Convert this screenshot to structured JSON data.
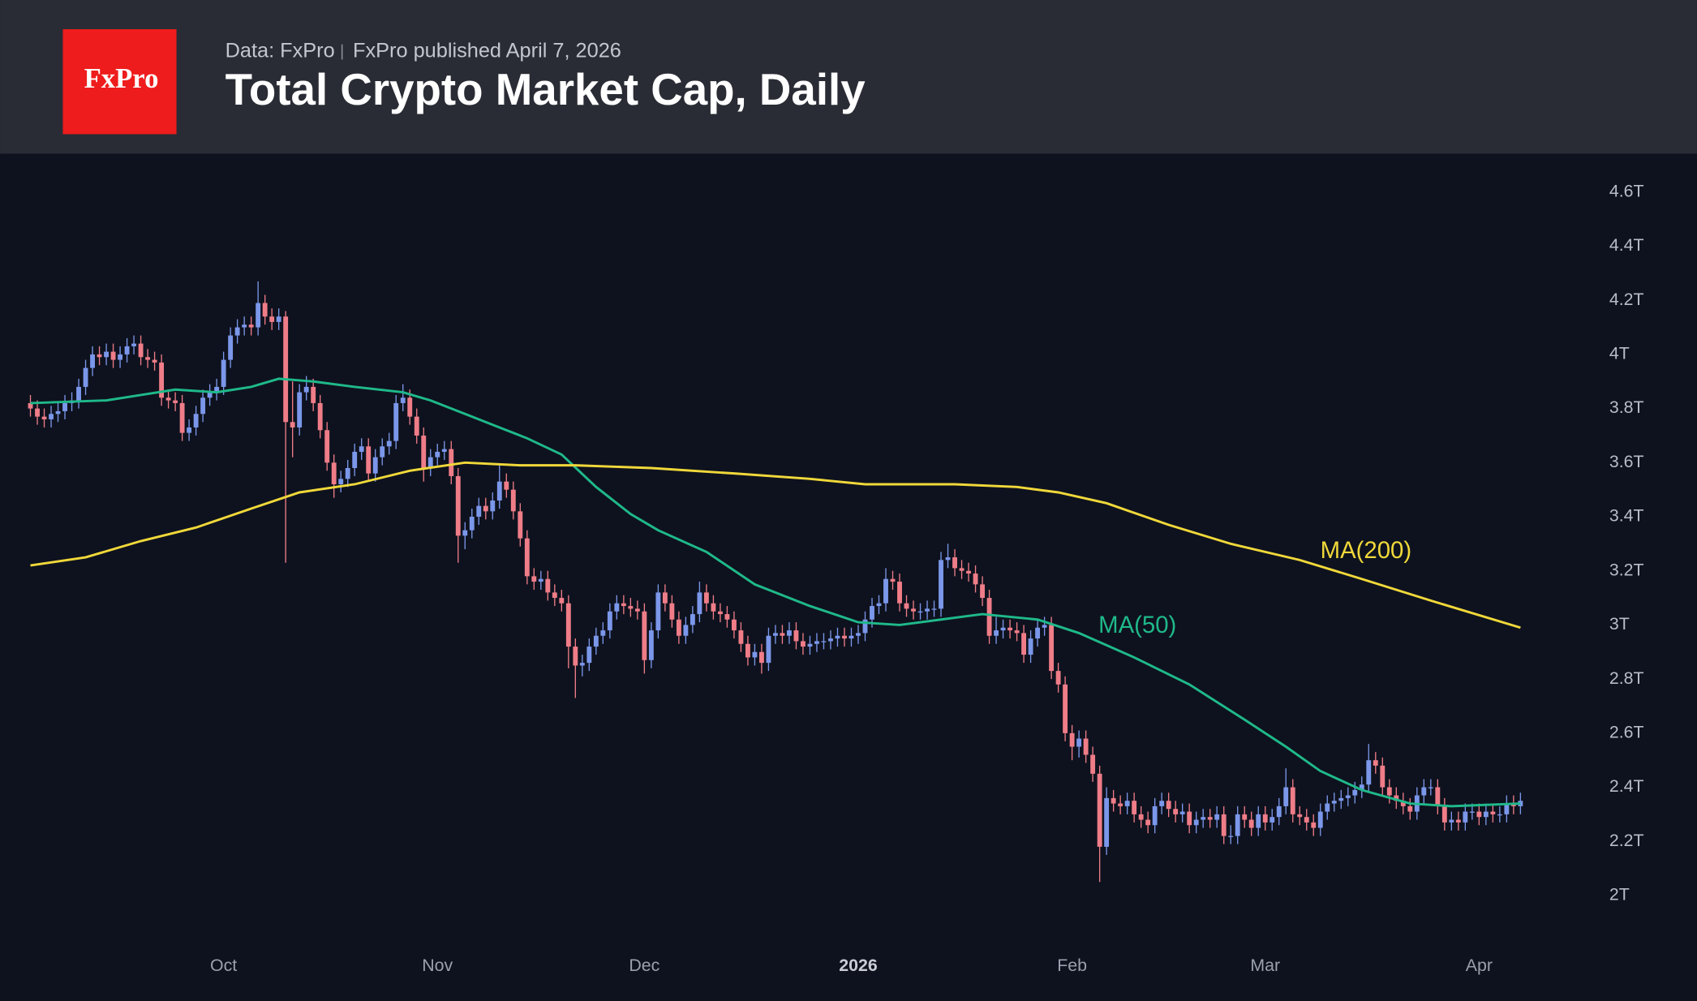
{
  "header": {
    "logo": "FxPro",
    "source": "Data: FxPro",
    "published": "FxPro published April 7, 2026"
  },
  "chart_data": {
    "type": "candlestick",
    "title": "Total Crypto Market Cap, Daily",
    "up_color": "#7b97ea",
    "down_color": "#ef7d88",
    "grid": false,
    "xlim": [
      -4.4,
      221.5
    ],
    "ylim": [
      1.83,
      4.73
    ],
    "xticks": [
      {
        "value": 28,
        "label": "Oct"
      },
      {
        "value": 59,
        "label": "Nov"
      },
      {
        "value": 89,
        "label": "Dec"
      },
      {
        "value": 120,
        "label": "2026",
        "bold": true
      },
      {
        "value": 151,
        "label": "Feb"
      },
      {
        "value": 179,
        "label": "Mar"
      },
      {
        "value": 210,
        "label": "Apr"
      }
    ],
    "yticks": [
      {
        "value": 2,
        "label": "2T"
      },
      {
        "value": 2.2,
        "label": "2.2T"
      },
      {
        "value": 2.4,
        "label": "2.4T"
      },
      {
        "value": 2.6,
        "label": "2.6T"
      },
      {
        "value": 2.8,
        "label": "2.8T"
      },
      {
        "value": 3,
        "label": "3T"
      },
      {
        "value": 3.2,
        "label": "3.2T"
      },
      {
        "value": 3.4,
        "label": "3.4T"
      },
      {
        "value": 3.6,
        "label": "3.6T"
      },
      {
        "value": 3.8,
        "label": "3.8T"
      },
      {
        "value": 4,
        "label": "4T"
      },
      {
        "value": 4.2,
        "label": "4.2T"
      },
      {
        "value": 4.4,
        "label": "4.4T"
      },
      {
        "value": 4.6,
        "label": "4.6T"
      }
    ],
    "x": [
      0,
      1,
      2,
      3,
      4,
      5,
      6,
      7,
      8,
      9,
      10,
      11,
      12,
      13,
      14,
      15,
      16,
      17,
      18,
      19,
      20,
      21,
      22,
      23,
      24,
      25,
      26,
      27,
      28,
      29,
      30,
      31,
      32,
      33,
      34,
      35,
      36,
      37,
      38,
      39,
      40,
      41,
      42,
      43,
      44,
      45,
      46,
      47,
      48,
      49,
      50,
      51,
      52,
      53,
      54,
      55,
      56,
      57,
      58,
      59,
      60,
      61,
      62,
      63,
      64,
      65,
      66,
      67,
      68,
      69,
      70,
      71,
      72,
      73,
      74,
      75,
      76,
      77,
      78,
      79,
      80,
      81,
      82,
      83,
      84,
      85,
      86,
      87,
      88,
      89,
      90,
      91,
      92,
      93,
      94,
      95,
      96,
      97,
      98,
      99,
      100,
      101,
      102,
      103,
      104,
      105,
      106,
      107,
      108,
      109,
      110,
      111,
      112,
      113,
      114,
      115,
      116,
      117,
      118,
      119,
      120,
      121,
      122,
      123,
      124,
      125,
      126,
      127,
      128,
      129,
      130,
      131,
      132,
      133,
      134,
      135,
      136,
      137,
      138,
      139,
      140,
      141,
      142,
      143,
      144,
      145,
      146,
      147,
      148,
      149,
      150,
      151,
      152,
      153,
      154,
      155,
      156,
      157,
      158,
      159,
      160,
      161,
      162,
      163,
      164,
      165,
      166,
      167,
      168,
      169,
      170,
      171,
      172,
      173,
      174,
      175,
      176,
      177,
      178,
      179,
      180,
      181,
      182,
      183,
      184,
      185,
      186,
      187,
      188,
      189,
      190,
      191,
      192,
      193,
      194,
      195,
      196,
      197,
      198,
      199,
      200,
      201,
      202,
      203,
      204,
      205,
      206,
      207,
      208,
      209,
      210,
      211,
      212,
      213,
      214,
      215,
      216
    ],
    "open": [
      3.82,
      3.8,
      3.77,
      3.76,
      3.78,
      3.79,
      3.82,
      3.83,
      3.88,
      3.95,
      4.0,
      3.99,
      4.01,
      3.98,
      4.0,
      4.03,
      4.04,
      3.99,
      3.98,
      3.97,
      3.84,
      3.83,
      3.82,
      3.71,
      3.73,
      3.78,
      3.84,
      3.86,
      3.88,
      3.98,
      4.07,
      4.1,
      4.11,
      4.1,
      4.19,
      4.14,
      4.12,
      4.14,
      3.75,
      3.73,
      3.86,
      3.88,
      3.82,
      3.72,
      3.6,
      3.52,
      3.54,
      3.58,
      3.64,
      3.66,
      3.56,
      3.62,
      3.66,
      3.68,
      3.82,
      3.84,
      3.77,
      3.7,
      3.58,
      3.62,
      3.64,
      3.65,
      3.55,
      3.33,
      3.35,
      3.4,
      3.44,
      3.42,
      3.46,
      3.53,
      3.5,
      3.42,
      3.32,
      3.18,
      3.16,
      3.17,
      3.12,
      3.1,
      3.08,
      2.92,
      2.85,
      2.86,
      2.92,
      2.96,
      2.98,
      3.05,
      3.08,
      3.07,
      3.06,
      3.05,
      2.87,
      2.98,
      3.12,
      3.08,
      3.02,
      2.96,
      3.0,
      3.04,
      3.12,
      3.08,
      3.05,
      3.04,
      3.02,
      2.98,
      2.93,
      2.88,
      2.9,
      2.86,
      2.96,
      2.97,
      2.96,
      2.98,
      2.94,
      2.92,
      2.93,
      2.94,
      2.94,
      2.95,
      2.96,
      2.95,
      2.96,
      2.97,
      3.02,
      3.07,
      3.08,
      3.17,
      3.16,
      3.08,
      3.06,
      3.05,
      3.05,
      3.06,
      3.06,
      3.24,
      3.25,
      3.21,
      3.2,
      3.19,
      3.15,
      3.1,
      2.96,
      2.98,
      2.99,
      2.98,
      2.97,
      2.89,
      2.95,
      2.99,
      3.0,
      2.83,
      2.78,
      2.6,
      2.55,
      2.58,
      2.52,
      2.45,
      2.18,
      2.36,
      2.34,
      2.33,
      2.35,
      2.3,
      2.28,
      2.26,
      2.33,
      2.35,
      2.32,
      2.3,
      2.31,
      2.26,
      2.28,
      2.29,
      2.28,
      2.3,
      2.22,
      2.22,
      2.3,
      2.28,
      2.25,
      2.3,
      2.27,
      2.29,
      2.33,
      2.4,
      2.3,
      2.29,
      2.27,
      2.25,
      2.31,
      2.34,
      2.35,
      2.36,
      2.37,
      2.39,
      2.41,
      2.5,
      2.48,
      2.4,
      2.37,
      2.35,
      2.33,
      2.31,
      2.37,
      2.4,
      2.4,
      2.33,
      2.27,
      2.28,
      2.27,
      2.31,
      2.31,
      2.29,
      2.31,
      2.3,
      2.3,
      2.34,
      2.33
    ],
    "high": [
      3.85,
      3.83,
      3.8,
      3.81,
      3.82,
      3.85,
      3.86,
      3.91,
      3.98,
      4.03,
      4.03,
      4.04,
      4.04,
      4.03,
      4.06,
      4.07,
      4.07,
      4.02,
      4.01,
      4.0,
      3.87,
      3.86,
      3.85,
      3.76,
      3.81,
      3.87,
      3.89,
      3.91,
      4.01,
      4.1,
      4.13,
      4.14,
      4.14,
      4.27,
      4.22,
      4.17,
      4.17,
      4.16,
      3.9,
      3.89,
      3.92,
      3.91,
      3.85,
      3.75,
      3.63,
      3.57,
      3.61,
      3.67,
      3.69,
      3.69,
      3.65,
      3.69,
      3.71,
      3.85,
      3.89,
      3.87,
      3.8,
      3.73,
      3.65,
      3.67,
      3.68,
      3.68,
      3.58,
      3.38,
      3.43,
      3.47,
      3.47,
      3.49,
      3.59,
      3.56,
      3.53,
      3.45,
      3.35,
      3.21,
      3.2,
      3.2,
      3.15,
      3.13,
      3.11,
      2.95,
      2.89,
      2.95,
      2.99,
      3.01,
      3.08,
      3.11,
      3.11,
      3.1,
      3.09,
      3.08,
      3.01,
      3.15,
      3.15,
      3.11,
      3.05,
      3.03,
      3.07,
      3.16,
      3.15,
      3.11,
      3.08,
      3.07,
      3.05,
      3.01,
      2.96,
      2.93,
      2.93,
      2.99,
      3.0,
      3.0,
      3.01,
      3.01,
      2.97,
      2.96,
      2.97,
      2.97,
      2.98,
      2.99,
      2.99,
      2.99,
      3.0,
      3.05,
      3.1,
      3.11,
      3.21,
      3.2,
      3.19,
      3.11,
      3.09,
      3.08,
      3.09,
      3.09,
      3.27,
      3.3,
      3.28,
      3.24,
      3.23,
      3.22,
      3.18,
      3.13,
      3.03,
      3.02,
      3.02,
      3.01,
      3.0,
      2.98,
      3.02,
      3.03,
      3.03,
      2.86,
      2.81,
      2.63,
      2.61,
      2.61,
      2.55,
      2.48,
      2.4,
      2.39,
      2.37,
      2.38,
      2.38,
      2.33,
      2.31,
      2.36,
      2.38,
      2.38,
      2.35,
      2.34,
      2.34,
      2.31,
      2.32,
      2.32,
      2.33,
      2.33,
      2.26,
      2.33,
      2.33,
      2.31,
      2.33,
      2.33,
      2.32,
      2.36,
      2.47,
      2.43,
      2.33,
      2.32,
      2.3,
      2.34,
      2.37,
      2.38,
      2.39,
      2.4,
      2.42,
      2.44,
      2.56,
      2.53,
      2.51,
      2.43,
      2.4,
      2.38,
      2.36,
      2.4,
      2.43,
      2.43,
      2.43,
      2.36,
      2.31,
      2.31,
      2.34,
      2.34,
      2.34,
      2.34,
      2.34,
      2.33,
      2.37,
      2.37,
      2.38
    ],
    "low": [
      3.77,
      3.74,
      3.73,
      3.73,
      3.75,
      3.76,
      3.79,
      3.8,
      3.85,
      3.92,
      3.96,
      3.96,
      3.95,
      3.95,
      3.97,
      4.0,
      3.96,
      3.95,
      3.94,
      3.81,
      3.8,
      3.79,
      3.68,
      3.68,
      3.7,
      3.75,
      3.81,
      3.83,
      3.85,
      3.95,
      4.04,
      4.07,
      4.07,
      4.07,
      4.11,
      4.09,
      4.09,
      3.23,
      3.62,
      3.7,
      3.83,
      3.79,
      3.69,
      3.57,
      3.47,
      3.49,
      3.51,
      3.55,
      3.61,
      3.53,
      3.53,
      3.59,
      3.63,
      3.65,
      3.79,
      3.74,
      3.67,
      3.53,
      3.55,
      3.59,
      3.61,
      3.52,
      3.23,
      3.28,
      3.32,
      3.37,
      3.39,
      3.39,
      3.43,
      3.47,
      3.39,
      3.29,
      3.15,
      3.13,
      3.13,
      3.09,
      3.07,
      3.05,
      2.84,
      2.73,
      2.81,
      2.83,
      2.89,
      2.93,
      2.95,
      3.02,
      3.04,
      3.03,
      3.02,
      2.82,
      2.84,
      2.95,
      3.05,
      2.99,
      2.93,
      2.93,
      2.97,
      3.01,
      3.05,
      3.02,
      3.01,
      2.99,
      2.95,
      2.9,
      2.85,
      2.85,
      2.82,
      2.83,
      2.93,
      2.93,
      2.93,
      2.91,
      2.89,
      2.89,
      2.9,
      2.91,
      2.91,
      2.92,
      2.92,
      2.92,
      2.93,
      2.94,
      2.99,
      3.04,
      3.05,
      3.13,
      3.05,
      3.03,
      3.02,
      3.02,
      3.02,
      3.03,
      3.03,
      3.21,
      3.18,
      3.17,
      3.16,
      3.12,
      3.07,
      2.93,
      2.93,
      2.95,
      2.95,
      2.94,
      2.86,
      2.86,
      2.92,
      2.96,
      2.8,
      2.75,
      2.57,
      2.5,
      2.51,
      2.49,
      2.42,
      2.05,
      2.15,
      2.31,
      2.3,
      2.3,
      2.27,
      2.25,
      2.23,
      2.23,
      2.3,
      2.29,
      2.27,
      2.27,
      2.23,
      2.23,
      2.25,
      2.25,
      2.25,
      2.19,
      2.19,
      2.19,
      2.25,
      2.22,
      2.22,
      2.24,
      2.24,
      2.26,
      2.3,
      2.27,
      2.26,
      2.24,
      2.22,
      2.22,
      2.28,
      2.31,
      2.32,
      2.33,
      2.34,
      2.36,
      2.38,
      2.45,
      2.37,
      2.34,
      2.32,
      2.3,
      2.28,
      2.28,
      2.34,
      2.37,
      2.3,
      2.24,
      2.24,
      2.24,
      2.24,
      2.28,
      2.26,
      2.26,
      2.27,
      2.27,
      2.27,
      2.3,
      2.3
    ],
    "close": [
      3.8,
      3.77,
      3.76,
      3.78,
      3.79,
      3.82,
      3.83,
      3.88,
      3.95,
      4.0,
      3.99,
      4.01,
      3.98,
      4.0,
      4.03,
      4.04,
      3.99,
      3.98,
      3.97,
      3.84,
      3.83,
      3.82,
      3.71,
      3.73,
      3.78,
      3.84,
      3.86,
      3.88,
      3.98,
      4.07,
      4.1,
      4.11,
      4.1,
      4.19,
      4.14,
      4.12,
      4.14,
      3.75,
      3.73,
      3.86,
      3.88,
      3.82,
      3.72,
      3.6,
      3.52,
      3.54,
      3.58,
      3.64,
      3.66,
      3.56,
      3.62,
      3.66,
      3.68,
      3.82,
      3.84,
      3.77,
      3.7,
      3.58,
      3.62,
      3.64,
      3.65,
      3.55,
      3.33,
      3.35,
      3.4,
      3.44,
      3.42,
      3.46,
      3.53,
      3.5,
      3.42,
      3.32,
      3.18,
      3.16,
      3.17,
      3.12,
      3.1,
      3.08,
      2.92,
      2.85,
      2.86,
      2.92,
      2.96,
      2.98,
      3.05,
      3.08,
      3.07,
      3.06,
      3.05,
      2.87,
      2.98,
      3.12,
      3.08,
      3.02,
      2.96,
      3.0,
      3.04,
      3.12,
      3.08,
      3.05,
      3.04,
      3.02,
      2.98,
      2.93,
      2.88,
      2.9,
      2.86,
      2.96,
      2.97,
      2.96,
      2.98,
      2.94,
      2.92,
      2.93,
      2.94,
      2.94,
      2.95,
      2.96,
      2.95,
      2.96,
      2.97,
      3.02,
      3.07,
      3.08,
      3.17,
      3.16,
      3.08,
      3.06,
      3.05,
      3.05,
      3.06,
      3.06,
      3.24,
      3.25,
      3.21,
      3.2,
      3.19,
      3.15,
      3.1,
      2.96,
      2.98,
      2.99,
      2.98,
      2.97,
      2.89,
      2.95,
      2.99,
      3.0,
      2.83,
      2.78,
      2.6,
      2.55,
      2.58,
      2.52,
      2.45,
      2.18,
      2.36,
      2.34,
      2.33,
      2.35,
      2.3,
      2.28,
      2.26,
      2.33,
      2.35,
      2.32,
      2.3,
      2.31,
      2.26,
      2.28,
      2.29,
      2.28,
      2.3,
      2.22,
      2.22,
      2.3,
      2.28,
      2.25,
      2.3,
      2.27,
      2.29,
      2.33,
      2.4,
      2.3,
      2.29,
      2.27,
      2.25,
      2.31,
      2.34,
      2.35,
      2.36,
      2.37,
      2.39,
      2.41,
      2.5,
      2.48,
      2.4,
      2.37,
      2.35,
      2.33,
      2.31,
      2.37,
      2.4,
      2.4,
      2.33,
      2.27,
      2.28,
      2.27,
      2.31,
      2.31,
      2.29,
      2.31,
      2.3,
      2.3,
      2.34,
      2.33,
      2.35
    ],
    "series": [
      {
        "name": "MA(50)",
        "color": "#1fb98a",
        "x": [
          0,
          11,
          16,
          21,
          27,
          32,
          36,
          41,
          47,
          54,
          58,
          63,
          68,
          72,
          77,
          82,
          87,
          91,
          98,
          105,
          113,
          120,
          126,
          132,
          138,
          146,
          152,
          160,
          168,
          176,
          182,
          187,
          193,
          200,
          206,
          216
        ],
        "values": [
          3.82,
          3.83,
          3.85,
          3.87,
          3.86,
          3.88,
          3.91,
          3.9,
          3.88,
          3.86,
          3.83,
          3.78,
          3.73,
          3.69,
          3.63,
          3.51,
          3.41,
          3.35,
          3.27,
          3.15,
          3.07,
          3.01,
          3.0,
          3.02,
          3.04,
          3.02,
          2.97,
          2.88,
          2.78,
          2.65,
          2.55,
          2.46,
          2.39,
          2.34,
          2.33,
          2.34
        ]
      },
      {
        "name": "MA(200)",
        "color": "#f0d83a",
        "x": [
          0,
          8,
          16,
          24,
          32,
          39,
          47,
          55,
          63,
          71,
          79,
          90,
          102,
          113,
          121,
          134,
          143,
          149,
          156,
          165,
          174,
          184,
          193,
          203,
          216
        ],
        "values": [
          3.22,
          3.25,
          3.31,
          3.36,
          3.43,
          3.49,
          3.52,
          3.57,
          3.6,
          3.59,
          3.59,
          3.58,
          3.56,
          3.54,
          3.52,
          3.52,
          3.51,
          3.49,
          3.45,
          3.37,
          3.3,
          3.24,
          3.17,
          3.09,
          2.99
        ]
      }
    ]
  }
}
